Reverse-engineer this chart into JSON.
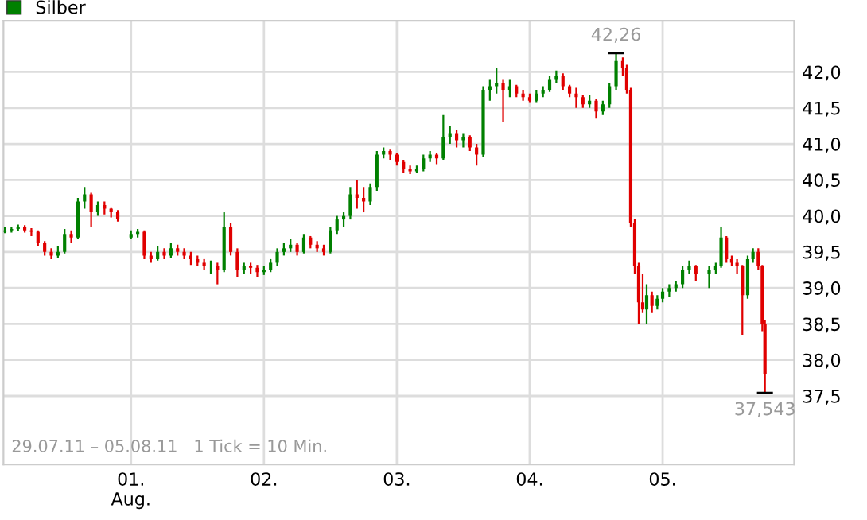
{
  "chart_data": {
    "type": "candlestick",
    "series": [
      {
        "name": "Silber",
        "color": "#008000",
        "colors": [
          "#008000",
          "#008000",
          "#008000",
          "#e00000",
          "#e00000",
          "#e00000",
          "#e00000",
          "#e00000",
          "#008000",
          "#008000",
          "#e00000",
          "#008000",
          "#008000",
          "#e00000",
          "#008000",
          "#e00000",
          "#e00000",
          "#e00000",
          "#008000",
          "#008000",
          "#e00000",
          "#e00000",
          "#008000",
          "#e00000",
          "#008000",
          "#e00000",
          "#e00000",
          "#e00000",
          "#e00000",
          "#e00000",
          "#008000",
          "#e00000",
          "#008000",
          "#e00000",
          "#e00000",
          "#008000",
          "#e00000",
          "#e00000",
          "#008000",
          "#008000",
          "#008000",
          "#008000",
          "#008000",
          "#e00000",
          "#008000",
          "#e00000",
          "#e00000",
          "#e00000",
          "#008000",
          "#008000",
          "#008000",
          "#008000",
          "#e00000",
          "#e00000",
          "#008000",
          "#008000",
          "#008000",
          "#e00000",
          "#e00000",
          "#e00000",
          "#e00000",
          "#008000",
          "#008000",
          "#008000",
          "#e00000",
          "#008000",
          "#008000",
          "#e00000",
          "#008000",
          "#e00000",
          "#e00000",
          "#008000",
          "#008000",
          "#008000",
          "#e00000",
          "#008000",
          "#e00000",
          "#e00000",
          "#e00000",
          "#008000",
          "#008000",
          "#008000",
          "#008000",
          "#e00000",
          "#e00000",
          "#e00000",
          "#e00000",
          "#008000",
          "#e00000",
          "#008000",
          "#008000",
          "#008000",
          "#e00000",
          "#e00000",
          "#e00000",
          "#e00000",
          "#e00000",
          "#e00000",
          "#008000",
          "#e00000",
          "#008000",
          "#008000",
          "#008000",
          "#008000",
          "#008000",
          "#008000",
          "#e00000",
          "#008000",
          "#008000",
          "#008000",
          "#e00000",
          "#e00000",
          "#e00000",
          "#e00000",
          "#008000",
          "#008000",
          "#e00000",
          "#e00000",
          "#e00000"
        ],
        "x": [
          0.05,
          0.1,
          0.15,
          0.2,
          0.25,
          0.3,
          0.35,
          0.4,
          0.45,
          0.5,
          0.55,
          0.6,
          0.65,
          0.7,
          0.75,
          0.8,
          0.85,
          0.9,
          1.0,
          1.05,
          1.1,
          1.15,
          1.2,
          1.25,
          1.3,
          1.35,
          1.4,
          1.45,
          1.5,
          1.55,
          1.6,
          1.65,
          1.7,
          1.75,
          1.8,
          1.85,
          1.9,
          1.95,
          2.0,
          2.05,
          2.1,
          2.15,
          2.2,
          2.25,
          2.3,
          2.35,
          2.4,
          2.45,
          2.5,
          2.55,
          2.6,
          2.65,
          2.7,
          2.75,
          2.8,
          2.85,
          2.9,
          2.95,
          3.0,
          3.05,
          3.1,
          3.15,
          3.2,
          3.25,
          3.3,
          3.35,
          3.4,
          3.45,
          3.5,
          3.55,
          3.6,
          3.65,
          3.7,
          3.75,
          3.8,
          3.85,
          3.9,
          3.95,
          4.0,
          4.05,
          4.1,
          4.15,
          4.2,
          4.25,
          4.3,
          4.35,
          4.4,
          4.45,
          4.5,
          4.55,
          4.6,
          4.65,
          4.7,
          4.73,
          4.76,
          4.79,
          4.82,
          4.85,
          4.88,
          4.92,
          4.96,
          5.0,
          5.05,
          5.1,
          5.15,
          5.2,
          5.25,
          5.35,
          5.4,
          5.44,
          5.48,
          5.52,
          5.56,
          5.6,
          5.64,
          5.68,
          5.72,
          5.75,
          5.77
        ],
        "ohlc": [
          [
            39.78,
            39.84,
            39.76,
            39.8
          ],
          [
            39.8,
            39.85,
            39.77,
            39.82
          ],
          [
            39.82,
            39.88,
            39.79,
            39.85
          ],
          [
            39.85,
            39.87,
            39.77,
            39.8
          ],
          [
            39.8,
            39.83,
            39.72,
            39.78
          ],
          [
            39.78,
            39.8,
            39.58,
            39.62
          ],
          [
            39.62,
            39.65,
            39.45,
            39.5
          ],
          [
            39.5,
            39.55,
            39.4,
            39.45
          ],
          [
            39.45,
            39.58,
            39.42,
            39.5
          ],
          [
            39.5,
            39.82,
            39.48,
            39.75
          ],
          [
            39.75,
            39.8,
            39.62,
            39.7
          ],
          [
            39.7,
            40.25,
            39.68,
            40.2
          ],
          [
            40.2,
            40.4,
            40.1,
            40.3
          ],
          [
            40.3,
            40.32,
            39.85,
            40.05
          ],
          [
            40.05,
            40.2,
            40.0,
            40.15
          ],
          [
            40.15,
            40.2,
            40.02,
            40.1
          ],
          [
            40.1,
            40.12,
            39.98,
            40.05
          ],
          [
            40.05,
            40.08,
            39.92,
            39.95
          ],
          [
            39.7,
            39.8,
            39.68,
            39.75
          ],
          [
            39.75,
            39.82,
            39.7,
            39.78
          ],
          [
            39.78,
            39.8,
            39.4,
            39.45
          ],
          [
            39.45,
            39.5,
            39.35,
            39.4
          ],
          [
            39.4,
            39.58,
            39.38,
            39.5
          ],
          [
            39.5,
            39.55,
            39.4,
            39.45
          ],
          [
            39.45,
            39.62,
            39.42,
            39.55
          ],
          [
            39.55,
            39.6,
            39.45,
            39.5
          ],
          [
            39.5,
            39.55,
            39.4,
            39.45
          ],
          [
            39.45,
            39.5,
            39.32,
            39.4
          ],
          [
            39.4,
            39.45,
            39.3,
            39.35
          ],
          [
            39.35,
            39.4,
            39.25,
            39.3
          ],
          [
            39.3,
            39.38,
            39.2,
            39.3
          ],
          [
            39.3,
            39.35,
            39.05,
            39.25
          ],
          [
            39.25,
            40.05,
            39.22,
            39.85
          ],
          [
            39.85,
            39.9,
            39.45,
            39.5
          ],
          [
            39.5,
            39.55,
            39.15,
            39.25
          ],
          [
            39.25,
            39.35,
            39.2,
            39.3
          ],
          [
            39.3,
            39.35,
            39.2,
            39.28
          ],
          [
            39.28,
            39.32,
            39.15,
            39.22
          ],
          [
            39.22,
            39.3,
            39.18,
            39.25
          ],
          [
            39.25,
            39.4,
            39.22,
            39.35
          ],
          [
            39.35,
            39.55,
            39.3,
            39.5
          ],
          [
            39.5,
            39.62,
            39.45,
            39.55
          ],
          [
            39.55,
            39.68,
            39.5,
            39.6
          ],
          [
            39.6,
            39.62,
            39.45,
            39.5
          ],
          [
            39.5,
            39.75,
            39.48,
            39.7
          ],
          [
            39.7,
            39.72,
            39.55,
            39.6
          ],
          [
            39.6,
            39.65,
            39.5,
            39.55
          ],
          [
            39.55,
            39.6,
            39.45,
            39.5
          ],
          [
            39.5,
            39.85,
            39.48,
            39.8
          ],
          [
            39.8,
            40.0,
            39.75,
            39.95
          ],
          [
            39.95,
            40.05,
            39.85,
            40.0
          ],
          [
            40.0,
            40.4,
            39.95,
            40.3
          ],
          [
            40.3,
            40.5,
            40.1,
            40.25
          ],
          [
            40.25,
            40.4,
            40.05,
            40.2
          ],
          [
            40.2,
            40.45,
            40.15,
            40.4
          ],
          [
            40.4,
            40.9,
            40.35,
            40.85
          ],
          [
            40.85,
            40.95,
            40.8,
            40.9
          ],
          [
            40.9,
            40.92,
            40.78,
            40.85
          ],
          [
            40.85,
            40.88,
            40.7,
            40.75
          ],
          [
            40.75,
            40.78,
            40.6,
            40.65
          ],
          [
            40.65,
            40.7,
            40.58,
            40.62
          ],
          [
            40.62,
            40.7,
            40.6,
            40.65
          ],
          [
            40.65,
            40.85,
            40.62,
            40.8
          ],
          [
            40.8,
            40.9,
            40.75,
            40.85
          ],
          [
            40.85,
            40.88,
            40.72,
            40.8
          ],
          [
            40.8,
            41.4,
            40.78,
            41.1
          ],
          [
            41.1,
            41.25,
            41.0,
            41.15
          ],
          [
            41.15,
            41.2,
            40.95,
            41.05
          ],
          [
            41.05,
            41.15,
            40.95,
            41.1
          ],
          [
            41.1,
            41.12,
            40.9,
            40.95
          ],
          [
            40.95,
            41.0,
            40.7,
            40.85
          ],
          [
            40.85,
            41.8,
            40.82,
            41.75
          ],
          [
            41.75,
            41.9,
            41.6,
            41.8
          ],
          [
            41.8,
            42.05,
            41.7,
            41.85
          ],
          [
            41.85,
            41.9,
            41.3,
            41.75
          ],
          [
            41.75,
            41.9,
            41.65,
            41.8
          ],
          [
            41.8,
            41.82,
            41.65,
            41.7
          ],
          [
            41.7,
            41.75,
            41.6,
            41.65
          ],
          [
            41.65,
            41.7,
            41.58,
            41.6
          ],
          [
            41.6,
            41.75,
            41.58,
            41.7
          ],
          [
            41.7,
            41.8,
            41.65,
            41.75
          ],
          [
            41.75,
            41.95,
            41.72,
            41.9
          ],
          [
            41.9,
            42.02,
            41.85,
            41.95
          ],
          [
            41.95,
            41.98,
            41.75,
            41.8
          ],
          [
            41.8,
            41.82,
            41.65,
            41.7
          ],
          [
            41.7,
            41.78,
            41.5,
            41.65
          ],
          [
            41.65,
            41.68,
            41.5,
            41.55
          ],
          [
            41.55,
            41.68,
            41.5,
            41.6
          ],
          [
            41.6,
            41.62,
            41.35,
            41.45
          ],
          [
            41.45,
            41.6,
            41.4,
            41.55
          ],
          [
            41.55,
            41.85,
            41.5,
            41.8
          ],
          [
            41.8,
            42.26,
            41.75,
            42.15
          ],
          [
            42.15,
            42.2,
            41.95,
            42.05
          ],
          [
            42.05,
            42.1,
            41.7,
            41.75
          ],
          [
            41.75,
            41.78,
            39.85,
            39.9
          ],
          [
            39.9,
            39.95,
            39.2,
            39.3
          ],
          [
            39.3,
            39.35,
            38.5,
            38.8
          ],
          [
            38.8,
            39.2,
            38.65,
            38.7
          ],
          [
            38.7,
            39.05,
            38.5,
            38.9
          ],
          [
            38.9,
            38.95,
            38.65,
            38.75
          ],
          [
            38.75,
            38.9,
            38.7,
            38.85
          ],
          [
            38.85,
            39.0,
            38.8,
            38.95
          ],
          [
            38.95,
            39.05,
            38.88,
            39.0
          ],
          [
            39.0,
            39.1,
            38.95,
            39.05
          ],
          [
            39.05,
            39.3,
            39.0,
            39.25
          ],
          [
            39.25,
            39.38,
            39.2,
            39.3
          ],
          [
            39.3,
            39.32,
            39.1,
            39.2
          ],
          [
            39.2,
            39.3,
            39.0,
            39.25
          ],
          [
            39.25,
            39.35,
            39.2,
            39.3
          ],
          [
            39.3,
            39.85,
            39.28,
            39.7
          ],
          [
            39.7,
            39.72,
            39.35,
            39.4
          ],
          [
            39.4,
            39.45,
            39.3,
            39.35
          ],
          [
            39.35,
            39.4,
            39.2,
            39.3
          ],
          [
            39.3,
            39.32,
            38.35,
            38.9
          ],
          [
            38.9,
            39.45,
            38.85,
            39.4
          ],
          [
            39.4,
            39.55,
            39.35,
            39.5
          ],
          [
            39.5,
            39.55,
            39.25,
            39.3
          ],
          [
            39.3,
            39.32,
            38.4,
            38.5
          ],
          [
            38.5,
            38.55,
            37.543,
            37.8
          ]
        ]
      }
    ],
    "xlim": [
      0.04,
      5.99
    ],
    "ylim": [
      36.55,
      42.71
    ],
    "xticks": [
      {
        "value": 1,
        "label": "01.\nAug."
      },
      {
        "value": 2,
        "label": "02."
      },
      {
        "value": 3,
        "label": "03."
      },
      {
        "value": 4,
        "label": "04."
      },
      {
        "value": 5,
        "label": "05."
      }
    ],
    "yticks": [
      {
        "value": 37.5,
        "label": "37,5"
      },
      {
        "value": 38.0,
        "label": "38,0"
      },
      {
        "value": 38.5,
        "label": "38,5"
      },
      {
        "value": 39.0,
        "label": "39,0"
      },
      {
        "value": 39.5,
        "label": "39,5"
      },
      {
        "value": 40.0,
        "label": "40,0"
      },
      {
        "value": 40.5,
        "label": "40,5"
      },
      {
        "value": 41.0,
        "label": "41,0"
      },
      {
        "value": 41.5,
        "label": "41,5"
      },
      {
        "value": 42.0,
        "label": "42,0"
      }
    ],
    "grid": true,
    "legend": "top left",
    "annotations": [
      {
        "text": "42,26",
        "x": 4.65,
        "y": 42.26
      },
      {
        "text": "37,543",
        "x": 5.77,
        "y": 37.543
      },
      "29.07.11 – 05.08.11   1 Tick = 10 Min."
    ]
  }
}
